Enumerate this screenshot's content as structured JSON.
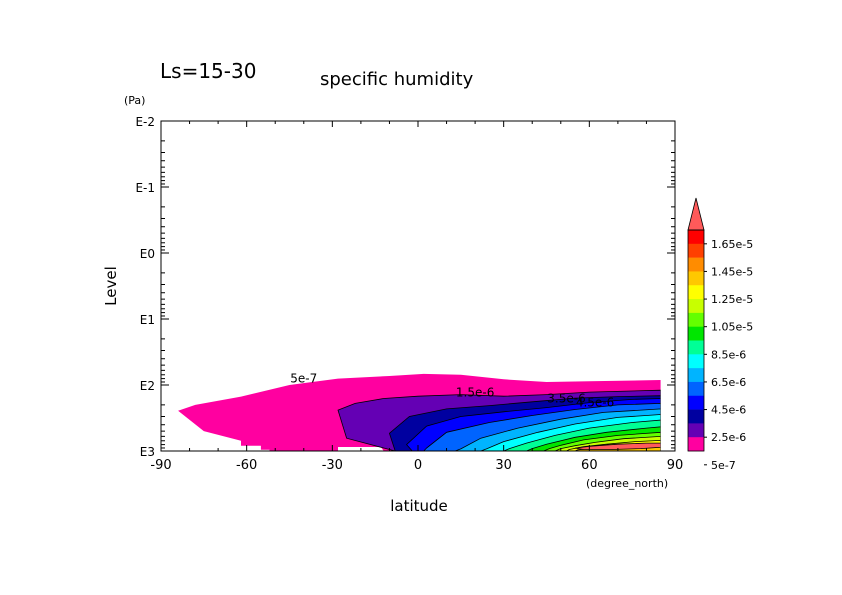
{
  "chart_data": {
    "type": "contour",
    "title": "specific humidity",
    "subtitle": "Ls=15-30",
    "xlabel": "latitude",
    "xunit": "(degree_north)",
    "ylabel": "Level",
    "yunit": "(Pa)",
    "xlim": [
      -90,
      90
    ],
    "ylim_pa": [
      1000,
      0.01
    ],
    "yscale": "log",
    "x_ticks": [
      "-90",
      "-60",
      "-30",
      "0",
      "30",
      "60",
      "90"
    ],
    "y_ticks": [
      "E-2",
      "E-1",
      "E0",
      "E1",
      "E2",
      "E3"
    ],
    "y_tick_values": [
      0.01,
      0.1,
      1,
      10,
      100,
      1000
    ],
    "contour_labels": [
      {
        "text": "5e-7",
        "lat": -40,
        "p": 80
      },
      {
        "text": "1.5e-6",
        "lat": 20,
        "p": 130
      },
      {
        "text": "3.5e-6",
        "lat": 52,
        "p": 160
      },
      {
        "text": "4.5e-6",
        "lat": 62,
        "p": 185
      }
    ],
    "colorbar": {
      "labels": [
        "1.65e-5",
        "1.45e-5",
        "1.25e-5",
        "1.05e-5",
        "8.5e-6",
        "6.5e-6",
        "4.5e-6",
        "2.5e-6",
        "5e-7"
      ],
      "colors": [
        "#ff0000",
        "#ff4000",
        "#ff8c00",
        "#ffc800",
        "#ffff00",
        "#c8ff00",
        "#64ff00",
        "#00e600",
        "#00ff96",
        "#00ffff",
        "#00b4ff",
        "#0064ff",
        "#0000ff",
        "#0000a0",
        "#6400b4",
        "#ff00a0"
      ],
      "overflow_color": "#ff5a5a"
    }
  }
}
